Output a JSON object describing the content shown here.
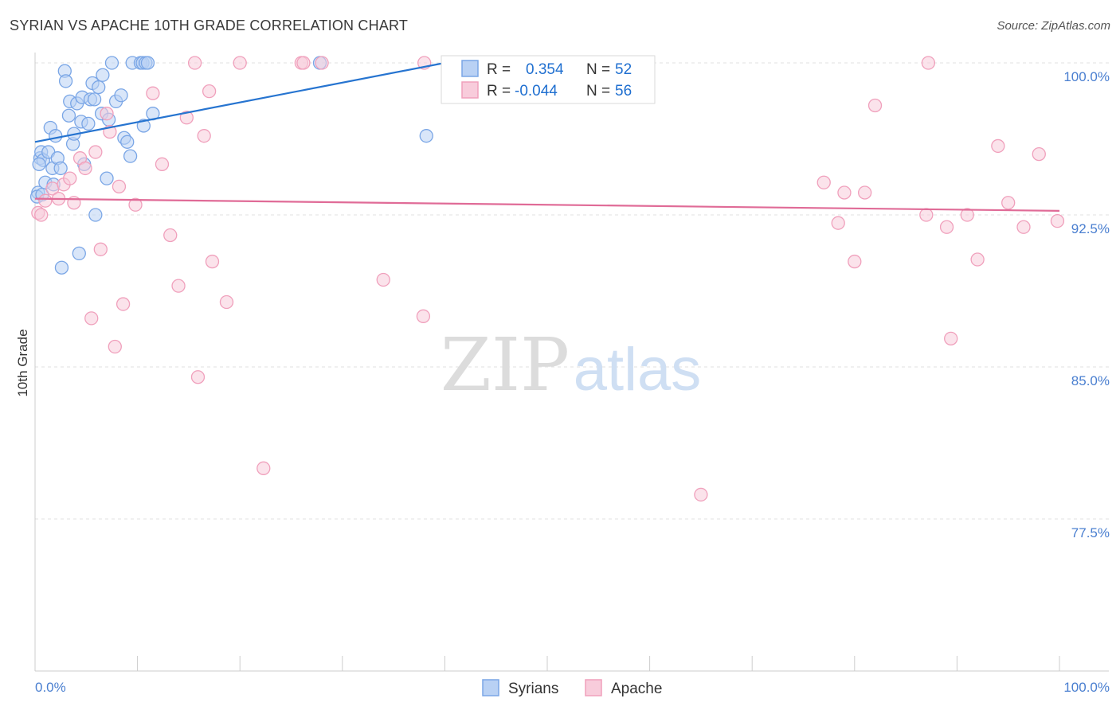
{
  "title": "SYRIAN VS APACHE 10TH GRADE CORRELATION CHART",
  "source": "Source: ZipAtlas.com",
  "watermark": {
    "part1": "ZIP",
    "part2": "atlas"
  },
  "chart_data": {
    "type": "scatter",
    "ylabel": "10th Grade",
    "xlim": [
      0,
      100
    ],
    "ylim": [
      70,
      100
    ],
    "x_tick_labels": {
      "left": "0.0%",
      "right": "100.0%"
    },
    "y_ticks": [
      {
        "value": 100.0,
        "label": "100.0%"
      },
      {
        "value": 92.5,
        "label": "92.5%"
      },
      {
        "value": 85.0,
        "label": "85.0%"
      },
      {
        "value": 77.5,
        "label": "77.5%"
      }
    ],
    "grid": "horizontal dashed",
    "legend_position": "top-center",
    "stats": [
      {
        "r_label": "R =",
        "r_value": "0.354",
        "n_label": "N =",
        "n_value": "52",
        "color": "#1f6fd0"
      },
      {
        "r_label": "R =",
        "r_value": "-0.044",
        "n_label": "N =",
        "n_value": "56",
        "color": "#1f6fd0"
      }
    ],
    "series": [
      {
        "name": "Syrians",
        "color": "#7aa6e6",
        "fill": "#b9d1f4",
        "line_color": "#2674d0",
        "trend": {
          "x0": 0.0,
          "y0": 96.1,
          "x1": 40.0,
          "y1": 100.0
        },
        "points": [
          [
            0.3,
            93.6
          ],
          [
            0.5,
            95.3
          ],
          [
            0.6,
            95.6
          ],
          [
            0.8,
            95.2
          ],
          [
            1.0,
            94.1
          ],
          [
            1.3,
            95.6
          ],
          [
            1.5,
            96.8
          ],
          [
            1.7,
            94.8
          ],
          [
            1.8,
            94.0
          ],
          [
            2.0,
            96.4
          ],
          [
            2.2,
            95.3
          ],
          [
            2.5,
            94.8
          ],
          [
            2.6,
            89.9
          ],
          [
            2.9,
            99.6
          ],
          [
            3.0,
            99.1
          ],
          [
            3.3,
            97.4
          ],
          [
            3.4,
            98.1
          ],
          [
            3.7,
            96.0
          ],
          [
            3.8,
            96.5
          ],
          [
            4.1,
            98.0
          ],
          [
            4.3,
            90.6
          ],
          [
            4.5,
            97.1
          ],
          [
            4.6,
            98.3
          ],
          [
            4.8,
            95.0
          ],
          [
            5.2,
            97.0
          ],
          [
            5.4,
            98.2
          ],
          [
            5.6,
            99.0
          ],
          [
            5.8,
            98.2
          ],
          [
            5.9,
            92.5
          ],
          [
            6.2,
            98.8
          ],
          [
            6.5,
            97.5
          ],
          [
            6.6,
            99.4
          ],
          [
            7.0,
            94.3
          ],
          [
            7.2,
            97.2
          ],
          [
            7.5,
            100.0
          ],
          [
            7.9,
            98.1
          ],
          [
            8.4,
            98.4
          ],
          [
            8.7,
            96.3
          ],
          [
            9.0,
            96.1
          ],
          [
            9.3,
            95.4
          ],
          [
            9.5,
            100.0
          ],
          [
            10.3,
            100.0
          ],
          [
            10.5,
            100.0
          ],
          [
            10.6,
            96.9
          ],
          [
            10.8,
            100.0
          ],
          [
            11.0,
            100.0
          ],
          [
            11.5,
            97.5
          ],
          [
            27.8,
            100.0
          ],
          [
            38.2,
            96.4
          ],
          [
            0.2,
            93.4
          ],
          [
            0.4,
            95.0
          ],
          [
            0.7,
            93.5
          ]
        ]
      },
      {
        "name": "Apache",
        "color": "#f0a0bc",
        "fill": "#f8ccdb",
        "line_color": "#e06b97",
        "trend": {
          "x0": 0.0,
          "y0": 93.3,
          "x1": 100.0,
          "y1": 92.7
        },
        "points": [
          [
            0.3,
            92.6
          ],
          [
            0.6,
            92.5
          ],
          [
            1.0,
            93.2
          ],
          [
            1.7,
            93.8
          ],
          [
            2.3,
            93.3
          ],
          [
            2.8,
            94.0
          ],
          [
            3.4,
            94.3
          ],
          [
            3.8,
            93.1
          ],
          [
            4.4,
            95.3
          ],
          [
            4.9,
            94.8
          ],
          [
            5.5,
            87.4
          ],
          [
            5.9,
            95.6
          ],
          [
            6.4,
            90.8
          ],
          [
            7.0,
            97.5
          ],
          [
            7.3,
            96.6
          ],
          [
            7.8,
            86.0
          ],
          [
            8.2,
            93.9
          ],
          [
            8.6,
            88.1
          ],
          [
            9.8,
            93.0
          ],
          [
            11.5,
            98.5
          ],
          [
            12.4,
            95.0
          ],
          [
            13.2,
            91.5
          ],
          [
            14.0,
            89.0
          ],
          [
            14.8,
            97.3
          ],
          [
            15.6,
            100.0
          ],
          [
            15.9,
            84.5
          ],
          [
            16.5,
            96.4
          ],
          [
            17.0,
            98.6
          ],
          [
            17.3,
            90.2
          ],
          [
            18.7,
            88.2
          ],
          [
            20.0,
            100.0
          ],
          [
            22.3,
            80.0
          ],
          [
            26.0,
            100.0
          ],
          [
            26.2,
            100.0
          ],
          [
            28.0,
            100.0
          ],
          [
            34.0,
            89.3
          ],
          [
            37.9,
            87.5
          ],
          [
            38.0,
            100.0
          ],
          [
            65.0,
            78.7
          ],
          [
            77.0,
            94.1
          ],
          [
            78.4,
            92.1
          ],
          [
            79.0,
            93.6
          ],
          [
            80.0,
            90.2
          ],
          [
            81.0,
            93.6
          ],
          [
            82.0,
            97.9
          ],
          [
            87.0,
            92.5
          ],
          [
            87.2,
            100.0
          ],
          [
            89.0,
            91.9
          ],
          [
            89.4,
            86.4
          ],
          [
            91.0,
            92.5
          ],
          [
            92.0,
            90.3
          ],
          [
            94.0,
            95.9
          ],
          [
            95.0,
            93.1
          ],
          [
            96.5,
            91.9
          ],
          [
            98.0,
            95.5
          ],
          [
            99.8,
            92.2
          ]
        ]
      }
    ]
  }
}
